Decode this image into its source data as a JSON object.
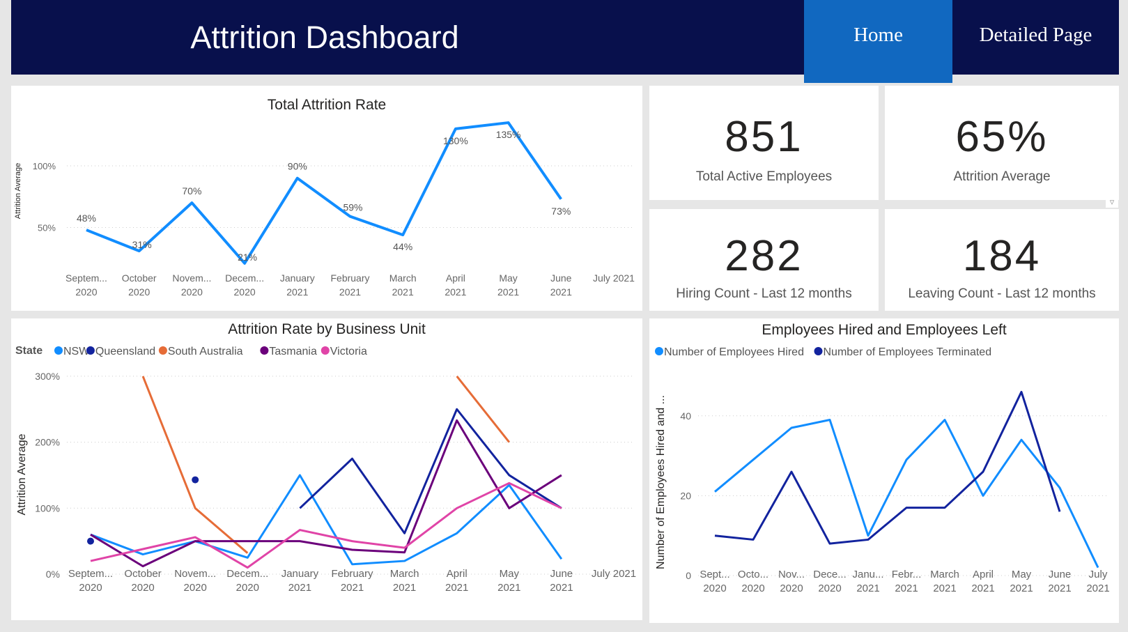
{
  "header": {
    "title": "Attrition Dashboard",
    "nav": [
      {
        "label": "Home",
        "active": true
      },
      {
        "label": "Detailed Page",
        "active": false
      }
    ]
  },
  "colors": {
    "header_bg": "#08104c",
    "active_tab": "#1168c0"
  },
  "kpis": [
    {
      "value": "851",
      "label": "Total Active Employees"
    },
    {
      "value": "65%",
      "label": "Attrition Average"
    },
    {
      "value": "282",
      "label": "Hiring Count - Last 12 months"
    },
    {
      "value": "184",
      "label": "Leaving Count - Last 12 months"
    }
  ],
  "filter_icon": "funnel-icon",
  "chart_data": [
    {
      "type": "line",
      "title": "Total Attrition Rate",
      "ylabel": "Attrition Average",
      "xlabel": "",
      "categories": [
        [
          "Septem...",
          "2020"
        ],
        [
          "October",
          "2020"
        ],
        [
          "Novem...",
          "2020"
        ],
        [
          "Decem...",
          "2020"
        ],
        [
          "January",
          "2021"
        ],
        [
          "February",
          "2021"
        ],
        [
          "March",
          "2021"
        ],
        [
          "April",
          "2021"
        ],
        [
          "May",
          "2021"
        ],
        [
          "June",
          "2021"
        ],
        [
          "July 2021",
          ""
        ]
      ],
      "yticks": [
        {
          "value": 50,
          "label": "50%"
        },
        {
          "value": 100,
          "label": "100%"
        }
      ],
      "series": [
        {
          "color": "#118dff",
          "values": [
            48,
            31,
            70,
            21,
            90,
            59,
            44,
            130,
            135,
            73,
            null
          ]
        }
      ],
      "data_labels": [
        "48%",
        "31%",
        "70%",
        "21%",
        "90%",
        "59%",
        "44%",
        "130%",
        "135%",
        "73%",
        ""
      ],
      "grid": true
    },
    {
      "type": "line",
      "title": "Attrition Rate by Business Unit",
      "ylabel": "Attrition Average",
      "xlabel": "",
      "legend_title": "State",
      "legend_position": "top-left",
      "categories": [
        [
          "Septem...",
          "2020"
        ],
        [
          "October",
          "2020"
        ],
        [
          "Novem...",
          "2020"
        ],
        [
          "Decem...",
          "2020"
        ],
        [
          "January",
          "2021"
        ],
        [
          "February",
          "2021"
        ],
        [
          "March",
          "2021"
        ],
        [
          "April",
          "2021"
        ],
        [
          "May",
          "2021"
        ],
        [
          "June",
          "2021"
        ],
        [
          "July 2021",
          ""
        ]
      ],
      "yticks": [
        {
          "value": 0,
          "label": "0%"
        },
        {
          "value": 100,
          "label": "100%"
        },
        {
          "value": 200,
          "label": "200%"
        },
        {
          "value": 300,
          "label": "300%"
        }
      ],
      "ylim": [
        0,
        300
      ],
      "series": [
        {
          "name": "NSW",
          "color": "#118dff",
          "values": [
            60,
            30,
            50,
            25,
            150,
            15,
            20,
            62,
            135,
            23,
            null
          ]
        },
        {
          "name": "Queensland",
          "color": "#12239e",
          "values": [
            50,
            null,
            143,
            null,
            100,
            175,
            62,
            250,
            150,
            100,
            null
          ]
        },
        {
          "name": "South Australia",
          "color": "#e66c37",
          "values": [
            null,
            300,
            100,
            32,
            null,
            null,
            null,
            300,
            200,
            null,
            null
          ]
        },
        {
          "name": "Tasmania",
          "color": "#6b007b",
          "values": [
            60,
            12,
            50,
            50,
            50,
            37,
            33,
            233,
            100,
            150,
            null
          ]
        },
        {
          "name": "Victoria",
          "color": "#e044a7",
          "values": [
            20,
            38,
            56,
            10,
            67,
            50,
            40,
            100,
            138,
            100,
            null
          ]
        }
      ],
      "grid": true
    },
    {
      "type": "line",
      "title": "Employees Hired and Employees Left",
      "ylabel": "Number of Employees Hired and ...",
      "xlabel": "",
      "legend_position": "top-left",
      "categories": [
        [
          "Sept...",
          "2020"
        ],
        [
          "Octo...",
          "2020"
        ],
        [
          "Nov...",
          "2020"
        ],
        [
          "Dece...",
          "2020"
        ],
        [
          "Janu...",
          "2021"
        ],
        [
          "Febr...",
          "2021"
        ],
        [
          "March",
          "2021"
        ],
        [
          "April",
          "2021"
        ],
        [
          "May",
          "2021"
        ],
        [
          "June",
          "2021"
        ],
        [
          "July",
          "2021"
        ]
      ],
      "yticks": [
        {
          "value": 0,
          "label": "0"
        },
        {
          "value": 20,
          "label": "20"
        },
        {
          "value": 40,
          "label": "40"
        }
      ],
      "series": [
        {
          "name": "Number of Employees Hired",
          "color": "#118dff",
          "values": [
            21,
            29,
            37,
            39,
            10,
            29,
            39,
            20,
            34,
            22,
            2
          ]
        },
        {
          "name": "Number of Employees Terminated",
          "color": "#12239e",
          "values": [
            10,
            9,
            26,
            8,
            9,
            17,
            17,
            26,
            46,
            16,
            null
          ]
        }
      ],
      "grid": true
    }
  ]
}
